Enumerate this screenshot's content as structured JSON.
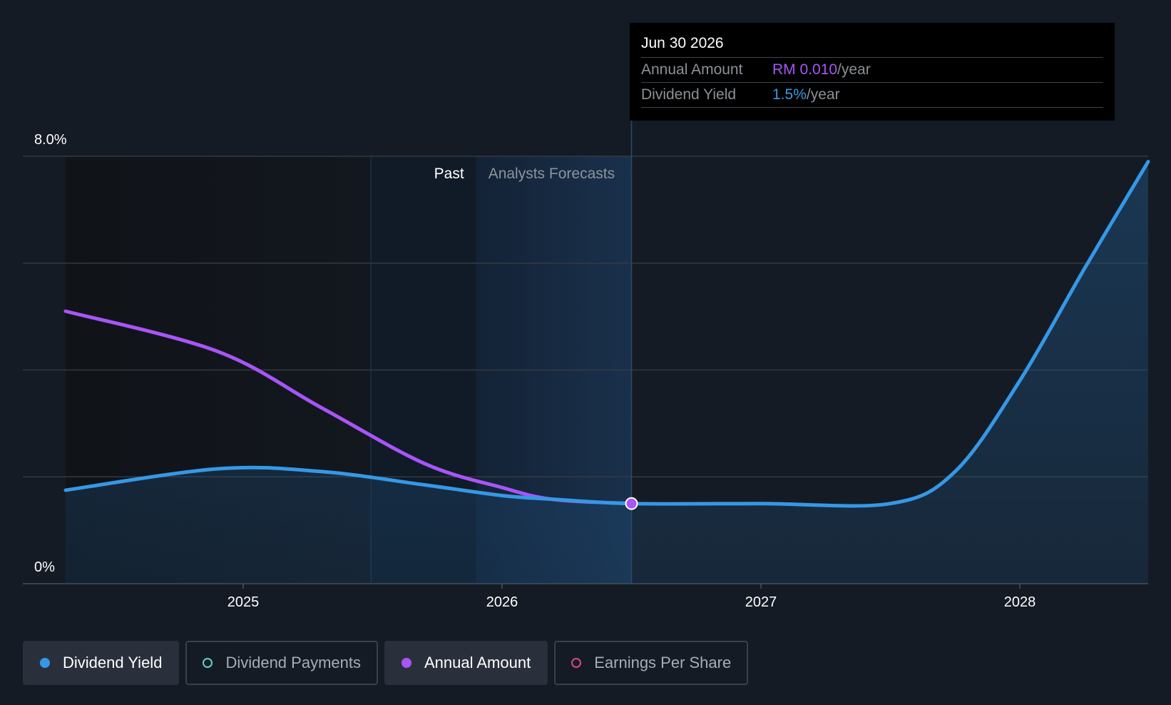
{
  "chart_data": {
    "type": "line",
    "title": "",
    "ylabel": "",
    "xlabel": "",
    "ylim": [
      0,
      8
    ],
    "xlim": [
      2024.3,
      2028.5
    ],
    "y_tick_labels": [
      "8.0%",
      "0%"
    ],
    "x_ticks": [
      2025,
      2026,
      2027,
      2028
    ],
    "x_tick_labels": [
      "2025",
      "2026",
      "2027",
      "2028"
    ],
    "regions": {
      "past_label": "Past",
      "forecast_label": "Analysts Forecasts",
      "past_end": 2025.9,
      "forecast_end": 2026.5
    },
    "series": [
      {
        "name": "Dividend Yield",
        "unit": "%",
        "color": "#3598e6",
        "x": [
          2024.5,
          2024.9,
          2025.3,
          2025.7,
          2026.0,
          2026.2,
          2026.5,
          2027.0,
          2027.5,
          2027.75,
          2028.0,
          2028.25,
          2028.5
        ],
        "values": [
          1.75,
          2.15,
          2.1,
          1.85,
          1.65,
          1.58,
          1.5,
          1.5,
          1.5,
          2.1,
          3.8,
          5.9,
          7.9
        ]
      },
      {
        "name": "Annual Amount",
        "unit": "RM",
        "color": "#a855f7",
        "x": [
          2024.5,
          2024.9,
          2025.3,
          2025.7,
          2026.0,
          2026.2,
          2026.5
        ],
        "values": [
          0.034,
          0.029,
          0.022,
          0.015,
          0.012,
          0.0105,
          0.01
        ]
      }
    ],
    "highlight": {
      "x": 2026.5,
      "yield": 1.5
    }
  },
  "tooltip": {
    "date": "Jun 30 2026",
    "annual_label": "Annual Amount",
    "annual_value": "RM 0.010",
    "annual_suffix": "/year",
    "yield_label": "Dividend Yield",
    "yield_value": "1.5%",
    "yield_suffix": "/year"
  },
  "legend": [
    {
      "label": "Dividend Yield",
      "color": "#3598e6",
      "active": true,
      "filled": true
    },
    {
      "label": "Dividend Payments",
      "color": "#5fd3c7",
      "active": false,
      "filled": false
    },
    {
      "label": "Annual Amount",
      "color": "#a855f7",
      "active": true,
      "filled": true
    },
    {
      "label": "Earnings Per Share",
      "color": "#d9478e",
      "active": false,
      "filled": false
    }
  ]
}
